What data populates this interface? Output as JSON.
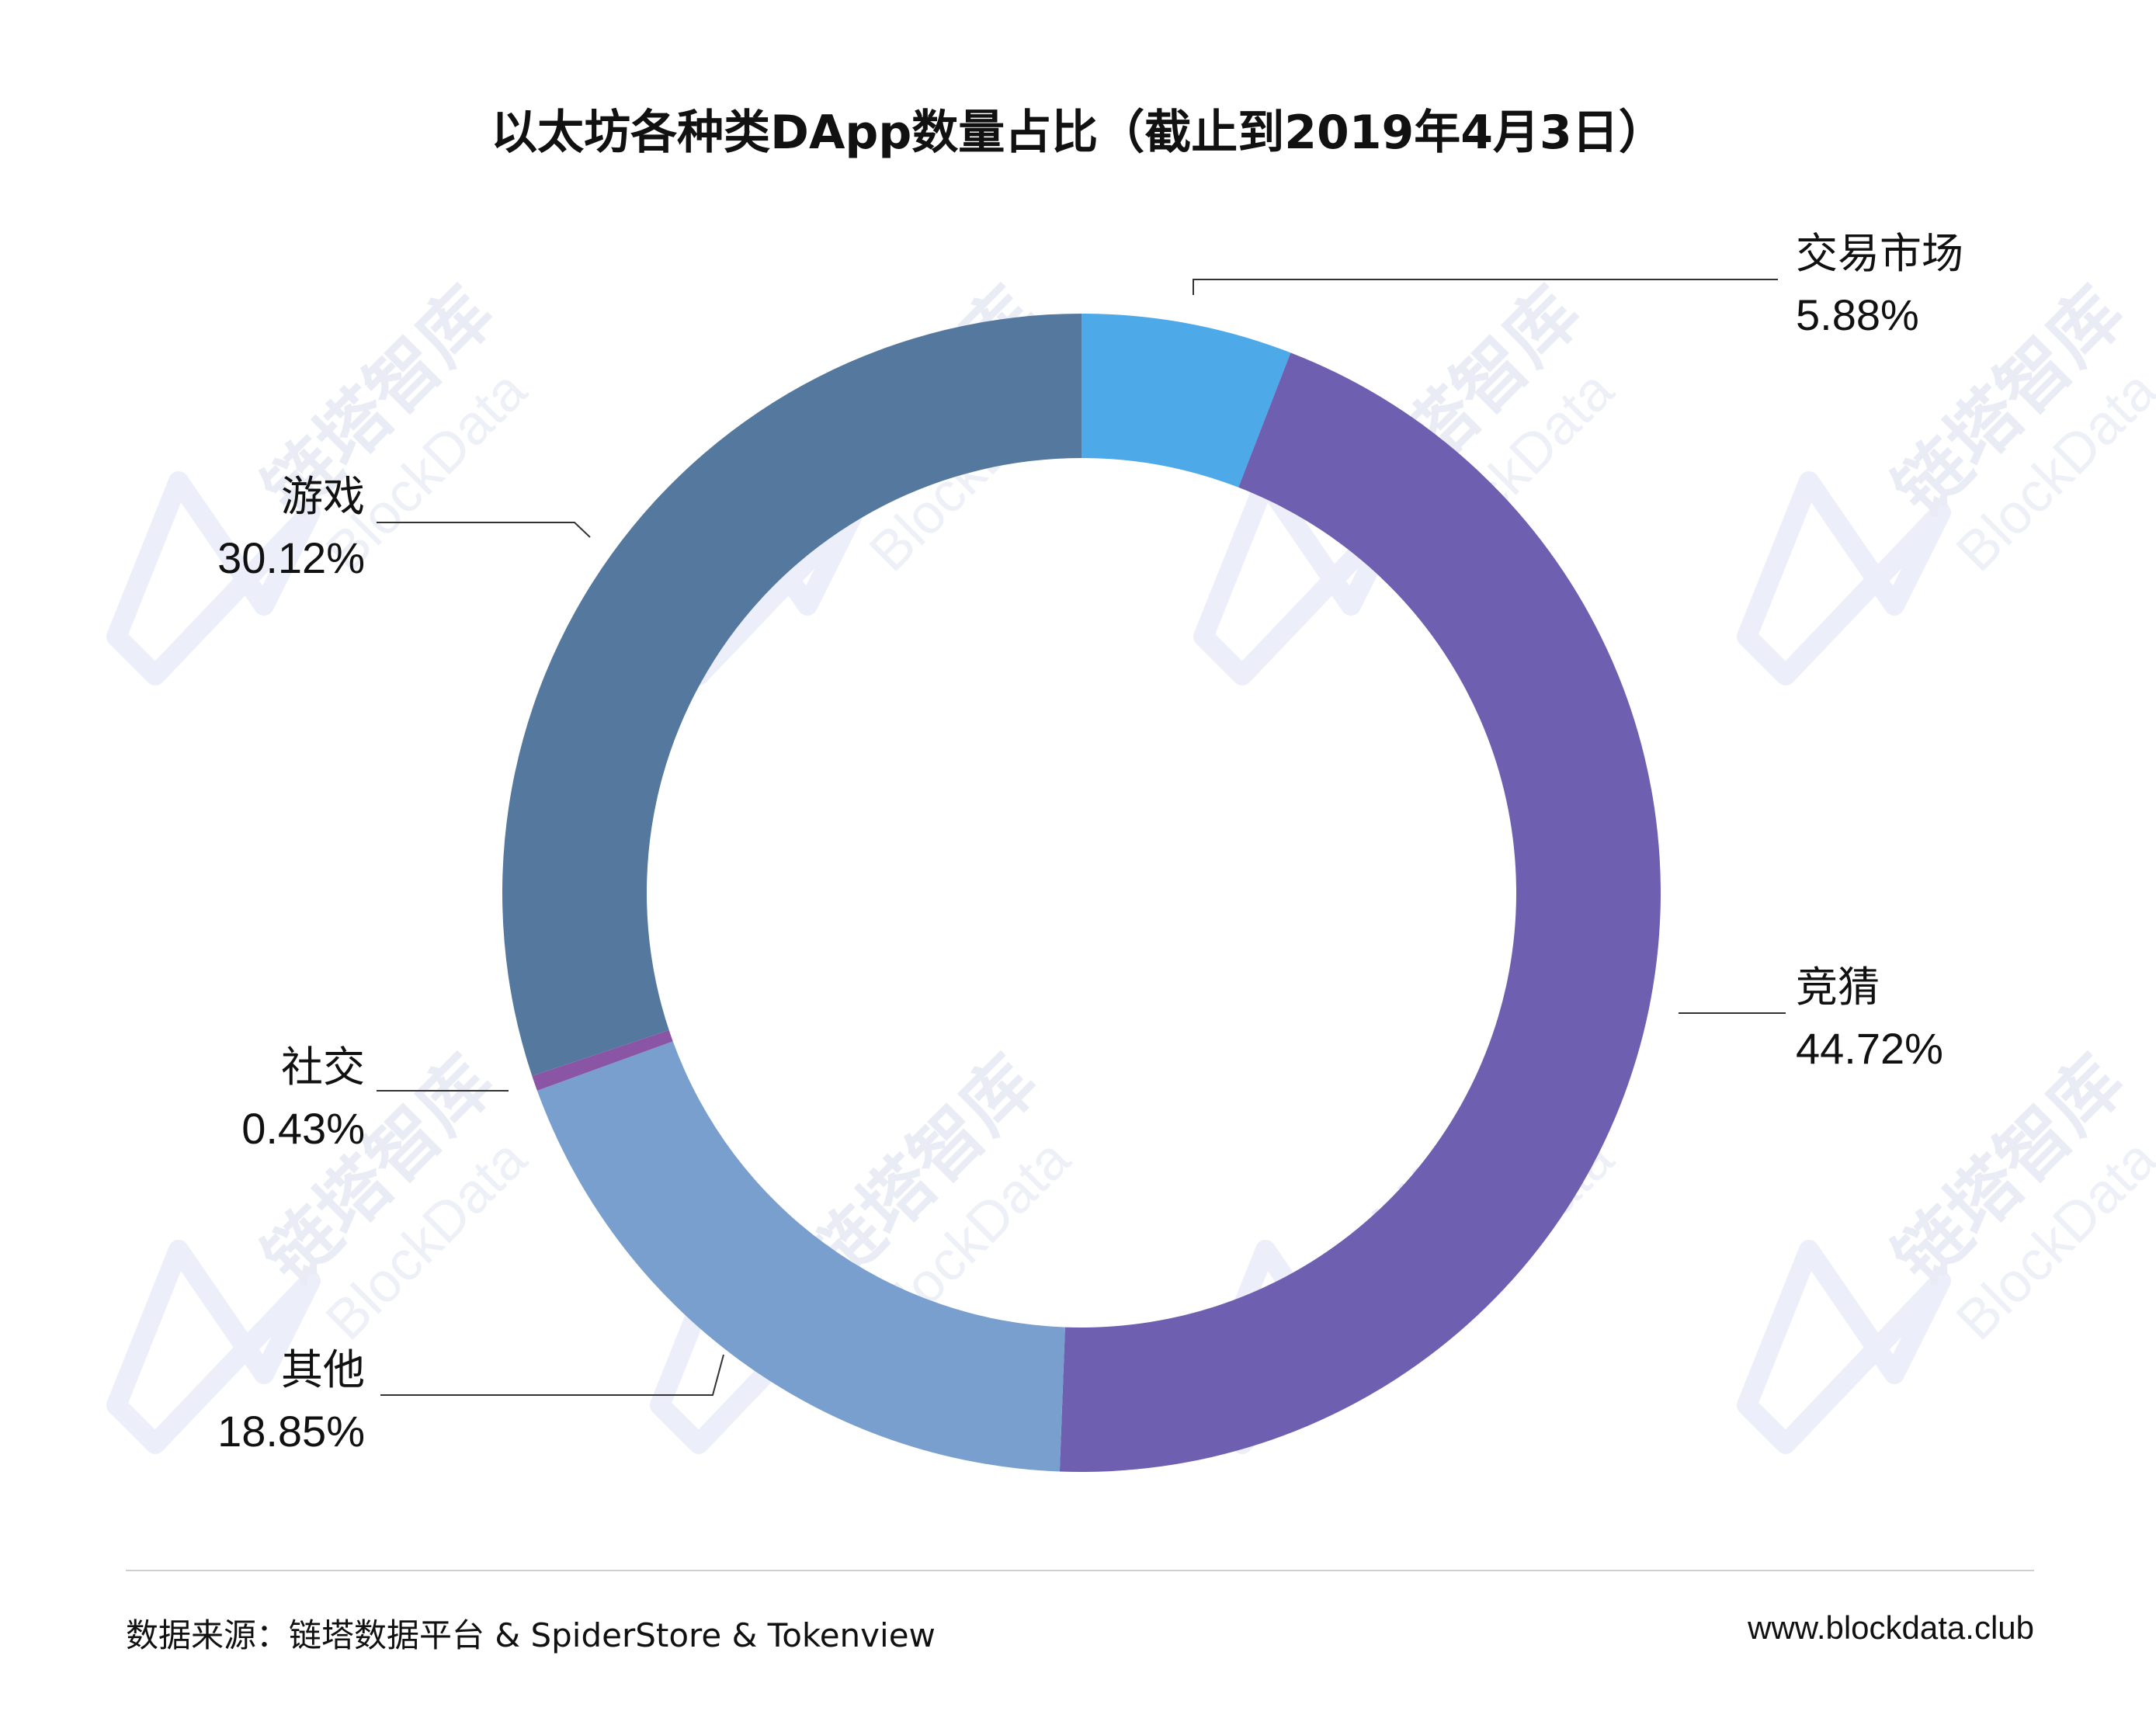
{
  "title": "以太坊各种类DApp数量占比（截止到2019年4月3日）",
  "chart_data": {
    "type": "pie",
    "variant": "donut",
    "title": "以太坊各种类DApp数量占比（截止到2019年4月3日）",
    "slices": [
      {
        "label": "交易市场",
        "value": 5.88,
        "display": "5.88%",
        "color": "#4DA9E8"
      },
      {
        "label": "竞猜",
        "value": 44.72,
        "display": "44.72%",
        "color": "#6E5FB0"
      },
      {
        "label": "其他",
        "value": 18.85,
        "display": "18.85%",
        "color": "#789FCE"
      },
      {
        "label": "社交",
        "value": 0.43,
        "display": "0.43%",
        "color": "#8B55A6"
      },
      {
        "label": "游戏",
        "value": 30.12,
        "display": "30.12%",
        "color": "#55789E"
      }
    ],
    "start": "top",
    "direction": "clockwise",
    "legend": "none"
  },
  "watermark": {
    "cn": "链塔智库",
    "en": "BlockData"
  },
  "footer": {
    "source": "数据来源：链塔数据平台 & SpiderStore & Tokenview",
    "url": "www.blockdata.club"
  }
}
